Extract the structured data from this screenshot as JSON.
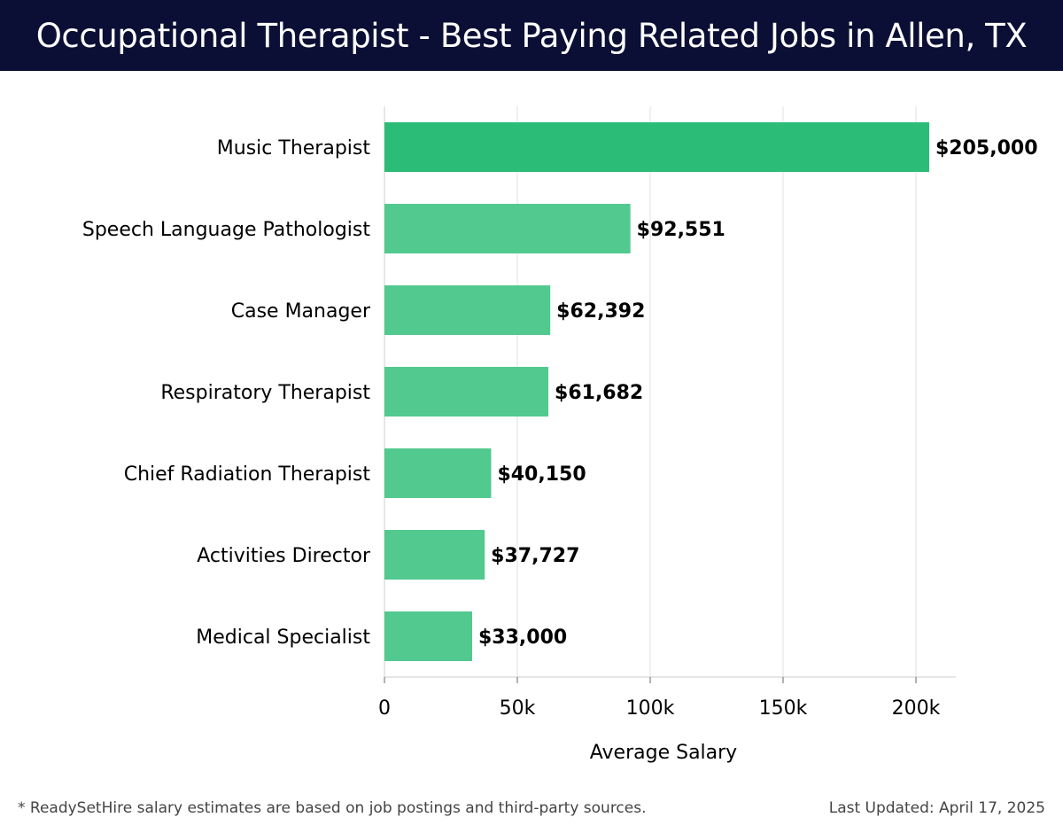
{
  "header": {
    "title": "Occupational Therapist - Best Paying Related Jobs in Allen, TX"
  },
  "colors": {
    "header_bg": "#0b0f35",
    "bar_top": "#2bbd77",
    "bar": "#52c98f",
    "grid": "#e2e2e2",
    "axis": "#cccccc",
    "label": "#000000"
  },
  "chart_data": {
    "type": "bar",
    "orientation": "horizontal",
    "categories": [
      "Music Therapist",
      "Speech Language Pathologist",
      "Case Manager",
      "Respiratory Therapist",
      "Chief Radiation Therapist",
      "Activities Director",
      "Medical Specialist"
    ],
    "values": [
      205000,
      92551,
      62392,
      61682,
      40150,
      37727,
      33000
    ],
    "data_labels": [
      "$205,000",
      "$92,551",
      "$62,392",
      "$61,682",
      "$40,150",
      "$37,727",
      "$33,000"
    ],
    "xlabel": "Average Salary",
    "ylabel": "",
    "xlim": [
      0,
      215000
    ],
    "xticks": [
      0,
      50000,
      100000,
      150000,
      200000
    ],
    "xtick_labels": [
      "0",
      "50k",
      "100k",
      "150k",
      "200k"
    ],
    "grid": true
  },
  "footer": {
    "note": "* ReadySetHire salary estimates are based on job postings and third-party sources.",
    "updated": "Last Updated: April 17, 2025"
  }
}
